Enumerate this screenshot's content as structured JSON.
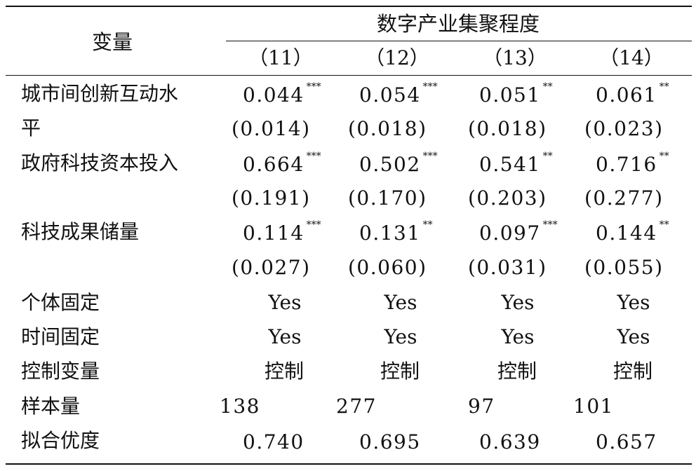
{
  "header": {
    "variable_label": "变量",
    "group_label": "数字产业集聚程度",
    "columns": [
      "（11）",
      "（12）",
      "（13）",
      "（14）"
    ]
  },
  "rows": [
    {
      "label_line1": "城市间创新互动水",
      "label_line2": "平",
      "coefs": [
        {
          "value": "0.044",
          "stars": "***"
        },
        {
          "value": "0.054",
          "stars": "***"
        },
        {
          "value": "0.051",
          "stars": "**"
        },
        {
          "value": "0.061",
          "stars": "**"
        }
      ],
      "ses": [
        "(0.014)",
        "(0.018)",
        "(0.018)",
        "(0.023)"
      ]
    },
    {
      "label_line1": "政府科技资本投入",
      "coefs": [
        {
          "value": "0.664",
          "stars": "***"
        },
        {
          "value": "0.502",
          "stars": "***"
        },
        {
          "value": "0.541",
          "stars": "**"
        },
        {
          "value": "0.716",
          "stars": "**"
        }
      ],
      "ses": [
        "(0.191)",
        "(0.170)",
        "(0.203)",
        "(0.277)"
      ]
    },
    {
      "label_line1": "科技成果储量",
      "coefs": [
        {
          "value": "0.114",
          "stars": "***"
        },
        {
          "value": "0.131",
          "stars": "**"
        },
        {
          "value": "0.097",
          "stars": "***"
        },
        {
          "value": "0.144",
          "stars": "**"
        }
      ],
      "ses": [
        "(0.027)",
        "(0.060)",
        "(0.031)",
        "(0.055)"
      ]
    }
  ],
  "footer_rows": [
    {
      "label": "个体固定",
      "values": [
        "Yes",
        "Yes",
        "Yes",
        "Yes"
      ]
    },
    {
      "label": "时间固定",
      "values": [
        "Yes",
        "Yes",
        "Yes",
        "Yes"
      ]
    },
    {
      "label": "控制变量",
      "values": [
        "控制",
        "控制",
        "控制",
        "控制"
      ]
    },
    {
      "label": "样本量",
      "values": [
        "138",
        "277",
        "97",
        "101"
      ]
    },
    {
      "label": "拟合优度",
      "values": [
        "0.740",
        "0.695",
        "0.639",
        "0.657"
      ]
    }
  ]
}
